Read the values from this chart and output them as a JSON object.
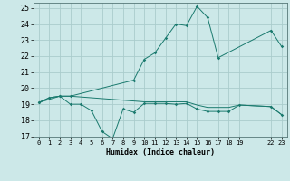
{
  "background_color": "#cce8e8",
  "grid_color": "#aacccc",
  "line_color": "#1a7a6e",
  "xlabel": "Humidex (Indice chaleur)",
  "xlim": [
    -0.5,
    23.5
  ],
  "ylim": [
    17,
    25.3
  ],
  "yticks": [
    17,
    18,
    19,
    20,
    21,
    22,
    23,
    24,
    25
  ],
  "xticks": [
    0,
    1,
    2,
    3,
    4,
    5,
    6,
    7,
    8,
    9,
    10,
    11,
    12,
    13,
    14,
    15,
    16,
    17,
    18,
    19,
    22,
    23
  ],
  "curve1_x": [
    0,
    1,
    2,
    3,
    4,
    5,
    6,
    7,
    8,
    9,
    10,
    11,
    12,
    13,
    14,
    15,
    16,
    17,
    18,
    19,
    22,
    23
  ],
  "curve1_y": [
    19.1,
    19.4,
    19.5,
    19.0,
    19.0,
    18.6,
    17.3,
    16.85,
    18.7,
    18.5,
    19.05,
    19.05,
    19.05,
    19.0,
    19.05,
    18.7,
    18.55,
    18.55,
    18.55,
    18.95,
    18.85,
    18.35
  ],
  "curve2_x": [
    0,
    1,
    2,
    3,
    10,
    11,
    12,
    13,
    14,
    15,
    16,
    17,
    18,
    19,
    22,
    23
  ],
  "curve2_y": [
    19.1,
    19.4,
    19.5,
    19.5,
    19.15,
    19.15,
    19.15,
    19.15,
    19.15,
    18.95,
    18.8,
    18.8,
    18.8,
    18.95,
    18.85,
    18.35
  ],
  "curve3_x": [
    0,
    2,
    3,
    9,
    10,
    11,
    12,
    13,
    14,
    15,
    16,
    17,
    22,
    23
  ],
  "curve3_y": [
    19.1,
    19.5,
    19.5,
    20.5,
    21.8,
    22.2,
    23.1,
    24.0,
    23.9,
    25.1,
    24.4,
    21.9,
    23.6,
    22.6
  ]
}
